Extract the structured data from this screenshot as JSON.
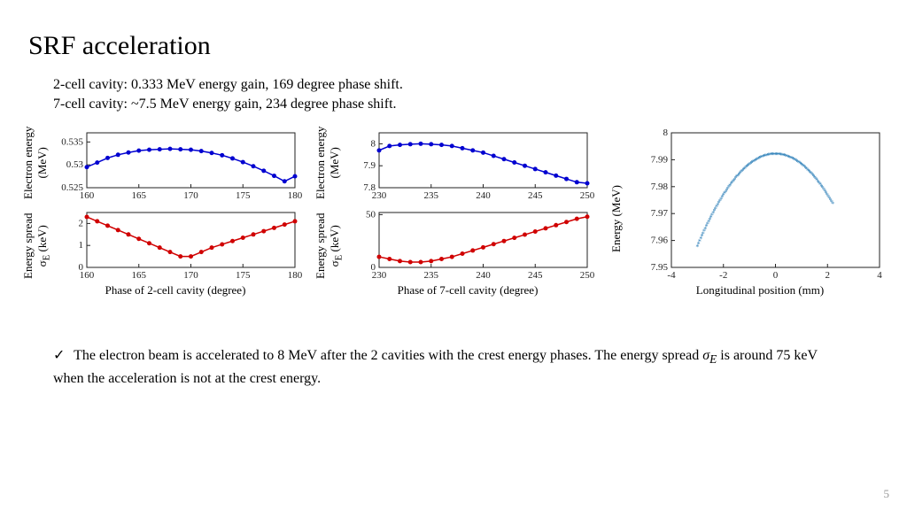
{
  "title": "SRF acceleration",
  "subtitle_line1": "2-cell cavity: 0.333 MeV energy gain, 169 degree phase shift.",
  "subtitle_line2": "7-cell cavity: ~7.5 MeV energy gain,  234 degree phase shift.",
  "conclusion_prefix": "The electron beam is accelerated to 8 MeV after the 2 cavities with the crest energy phases. The energy spread ",
  "conclusion_sigma": "σ",
  "conclusion_sub": "E",
  "conclusion_suffix": " is around 75 keV when the acceleration is not at the crest energy.",
  "check": "✓",
  "slide_num": "5",
  "chart_tl": {
    "type": "line+marker",
    "color": "#0000d0",
    "x": [
      160,
      161,
      162,
      163,
      164,
      165,
      166,
      167,
      168,
      169,
      170,
      171,
      172,
      173,
      174,
      175,
      176,
      177,
      178,
      179,
      180
    ],
    "y": [
      0.5295,
      0.5305,
      0.5315,
      0.5322,
      0.5327,
      0.5331,
      0.5333,
      0.5334,
      0.5335,
      0.5334,
      0.5333,
      0.533,
      0.5326,
      0.5321,
      0.5314,
      0.5306,
      0.5297,
      0.5287,
      0.5276,
      0.5264,
      0.5275
    ],
    "xlim": [
      160,
      180
    ],
    "xticks": [
      160,
      165,
      170,
      175,
      180
    ],
    "ylim": [
      0.525,
      0.537
    ],
    "yticks": [
      0.525,
      0.53,
      0.535
    ],
    "ylabel": "Electron energy\n(MeV)"
  },
  "chart_bl": {
    "type": "line+marker",
    "color": "#d00000",
    "x": [
      160,
      161,
      162,
      163,
      164,
      165,
      166,
      167,
      168,
      169,
      170,
      171,
      172,
      173,
      174,
      175,
      176,
      177,
      178,
      179,
      180
    ],
    "y": [
      2.3,
      2.1,
      1.9,
      1.7,
      1.5,
      1.3,
      1.1,
      0.9,
      0.7,
      0.5,
      0.5,
      0.7,
      0.9,
      1.05,
      1.2,
      1.35,
      1.5,
      1.65,
      1.8,
      1.95,
      2.1
    ],
    "xlim": [
      160,
      180
    ],
    "xticks": [
      160,
      165,
      170,
      175,
      180
    ],
    "ylim": [
      0,
      2.5
    ],
    "yticks": [
      0,
      1,
      2
    ],
    "ylabel": "Energy spread\nσE (keV)",
    "xlabel": "Phase of 2-cell cavity (degree)"
  },
  "chart_tm": {
    "type": "line+marker",
    "color": "#0000d0",
    "x": [
      230,
      231,
      232,
      233,
      234,
      235,
      236,
      237,
      238,
      239,
      240,
      241,
      242,
      243,
      244,
      245,
      246,
      247,
      248,
      249,
      250
    ],
    "y": [
      7.97,
      7.99,
      7.995,
      7.998,
      8.0,
      7.998,
      7.995,
      7.99,
      7.98,
      7.97,
      7.96,
      7.945,
      7.93,
      7.915,
      7.9,
      7.885,
      7.87,
      7.855,
      7.84,
      7.825,
      7.82
    ],
    "xlim": [
      230,
      250
    ],
    "xticks": [
      230,
      235,
      240,
      245,
      250
    ],
    "ylim": [
      7.8,
      8.05
    ],
    "yticks": [
      7.8,
      7.9,
      8
    ],
    "ylabel": "Electron energy\n(MeV)"
  },
  "chart_bm": {
    "type": "line+marker",
    "color": "#d00000",
    "x": [
      230,
      231,
      232,
      233,
      234,
      235,
      236,
      237,
      238,
      239,
      240,
      241,
      242,
      243,
      244,
      245,
      246,
      247,
      248,
      249,
      250
    ],
    "y": [
      10,
      8,
      6,
      5,
      5,
      6,
      8,
      10,
      13,
      16,
      19,
      22,
      25,
      28,
      31,
      34,
      37,
      40,
      43,
      46,
      48
    ],
    "xlim": [
      230,
      250
    ],
    "xticks": [
      230,
      235,
      240,
      245,
      250
    ],
    "ylim": [
      0,
      52
    ],
    "yticks": [
      0,
      50
    ],
    "ylabel": "Energy spread\nσE (keV)",
    "xlabel": "Phase of 7-cell cavity (degree)"
  },
  "chart_right": {
    "type": "scatter",
    "color": "#2c7fb8",
    "marker": "*",
    "xlim": [
      -4,
      4
    ],
    "xticks": [
      -4,
      -2,
      0,
      2,
      4
    ],
    "ylim": [
      7.95,
      8.0
    ],
    "yticks": [
      7.95,
      7.96,
      7.97,
      7.98,
      7.99,
      8
    ],
    "ylabel": "Energy (MeV)",
    "xlabel": "Longitudinal position (mm)",
    "parabola_a": -0.0038,
    "parabola_peak": 7.992,
    "parabola_x0": 0,
    "xmin_data": -3,
    "xmax_data": 2.2
  },
  "label_electron_energy": "Electron energy",
  "label_mev": "(MeV)",
  "label_energy_spread": "Energy spread",
  "label_sigma_kev_prefix": "σ",
  "label_sigma_kev_sub": "E",
  "label_sigma_kev_suffix": " (keV)",
  "label_energy_mev": "Energy (MeV)"
}
